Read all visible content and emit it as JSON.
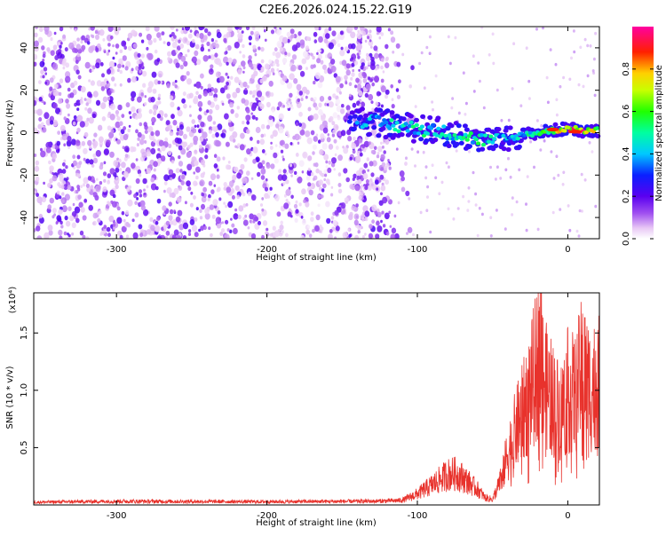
{
  "title": "C2E6.2026.024.15.22.G19",
  "chart_data": [
    {
      "type": "heatmap",
      "name": "spectrogram",
      "xlabel": "Height of straight line (km)",
      "ylabel": "Frequency (Hz)",
      "xlim": [
        -355,
        21
      ],
      "ylim": [
        -50,
        50
      ],
      "xticks": [
        -300,
        -200,
        -100,
        0
      ],
      "yticks": [
        -40,
        -20,
        0,
        20,
        40
      ],
      "colorbar": {
        "label": "Normalized spectral amplitude",
        "range": [
          0,
          1
        ],
        "ticks": [
          0.0,
          0.2,
          0.4,
          0.6,
          0.8
        ],
        "tick_labels": [
          "0.0",
          "0.2",
          "0.4",
          "0.6",
          "0.8"
        ],
        "colormap": "rainbow (white-violet-blue-cyan-green-yellow-red-magenta)"
      },
      "ridge": {
        "description": "Dominant spectral ridge, frequency (Hz) vs height (km)",
        "x": [
          -140,
          -120,
          -100,
          -80,
          -60,
          -50,
          -40,
          -30,
          -20,
          -10,
          0,
          10,
          20
        ],
        "y": [
          6,
          4,
          2,
          0,
          -3,
          -4,
          -3,
          -1,
          0,
          1,
          2,
          1,
          1
        ],
        "amplitude": [
          0.35,
          0.45,
          0.5,
          0.45,
          0.5,
          0.45,
          0.4,
          0.45,
          0.5,
          0.6,
          0.85,
          0.85,
          0.7
        ]
      }
    },
    {
      "type": "line",
      "name": "snr",
      "xlabel": "Height of straight line (km)",
      "ylabel": "SNR (10 * v/v)",
      "y_multiplier": "(x10⁴)",
      "xlim": [
        -355,
        21
      ],
      "ylim": [
        0,
        18500
      ],
      "xticks": [
        -300,
        -200,
        -100,
        0
      ],
      "yticks": [
        5000,
        10000,
        15000
      ],
      "ytick_labels": [
        "0.5",
        "1.0",
        "1.5"
      ],
      "color": "#e8322c",
      "envelope": {
        "x": [
          -355,
          -300,
          -200,
          -130,
          -110,
          -100,
          -90,
          -80,
          -75,
          -70,
          -60,
          -55,
          -50,
          -45,
          -40,
          -35,
          -30,
          -25,
          -20,
          -18,
          -15,
          -10,
          -5,
          0,
          5,
          10,
          15,
          20
        ],
        "y": [
          300,
          400,
          350,
          400,
          500,
          1200,
          2200,
          3300,
          3400,
          3000,
          1700,
          800,
          600,
          2500,
          5500,
          8000,
          10000,
          12500,
          15500,
          18500,
          13000,
          11500,
          10000,
          12500,
          12000,
          15000,
          12500,
          13500
        ]
      }
    }
  ]
}
